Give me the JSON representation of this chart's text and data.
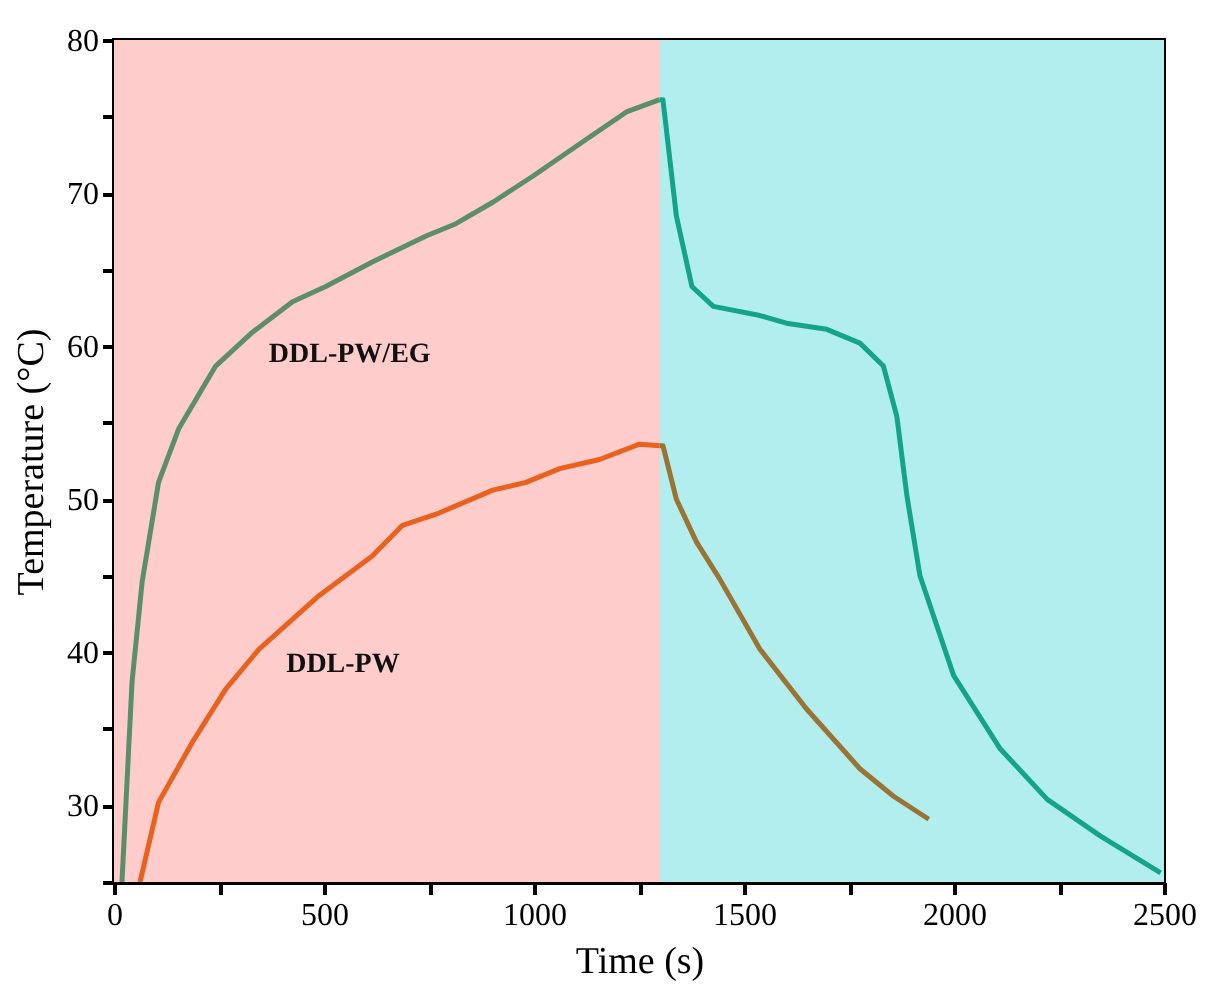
{
  "chart_data": {
    "type": "line",
    "xlabel": "Time (s)",
    "ylabel": "Temperature (°C)",
    "xlim": [
      0,
      2500
    ],
    "ylim": [
      25,
      80
    ],
    "xticks": [
      0,
      {
        "value": 250,
        "label": null
      },
      500,
      {
        "value": 750,
        "label": null
      },
      1000,
      {
        "value": 1250,
        "label": null
      },
      1500,
      {
        "value": 1750,
        "label": null
      },
      2000,
      {
        "value": 2250,
        "label": null
      },
      2500
    ],
    "yticks": [
      {
        "value": 25,
        "label": null
      },
      30,
      {
        "value": 35,
        "label": null
      },
      40,
      {
        "value": 45,
        "label": null
      },
      50,
      {
        "value": 55,
        "label": null
      },
      60,
      {
        "value": 65,
        "label": null
      },
      70,
      {
        "value": 75,
        "label": null
      },
      80
    ],
    "grid": false,
    "bands": [
      {
        "axis": "x",
        "from": 0,
        "to": 1300,
        "color": "#ffcccc"
      },
      {
        "axis": "x",
        "from": 1300,
        "to": 2500,
        "color": "#b3eeee"
      }
    ],
    "series": [
      {
        "name": "DDL-PW/EG",
        "color": "#5b8f6b",
        "x": [
          19,
          43,
          67,
          106,
          154,
          242,
          329,
          425,
          504,
          615,
          743,
          814,
          902,
          997,
          1124,
          1220,
          1299
        ],
        "values": [
          25,
          38.1,
          44.6,
          51.1,
          54.6,
          58.7,
          60.9,
          62.9,
          63.9,
          65.5,
          67.2,
          68.0,
          69.4,
          71.1,
          73.5,
          75.3,
          76.1
        ]
      },
      {
        "color": "#13a48a",
        "x": [
          1299,
          1307,
          1339,
          1376,
          1427,
          1538,
          1601,
          1697,
          1776,
          1832,
          1864,
          1888,
          1919,
          1999,
          2110,
          2222,
          2349,
          2492
        ],
        "values": [
          76.1,
          76.1,
          68.5,
          63.9,
          62.6,
          62.0,
          61.5,
          61.1,
          60.2,
          58.7,
          55.4,
          50.2,
          45.0,
          38.5,
          33.7,
          30.4,
          28.0,
          25.6
        ]
      },
      {
        "name": "DDL-PW",
        "color": "#e8621e",
        "x": [
          62,
          106,
          186,
          266,
          345,
          488,
          615,
          687,
          774,
          902,
          981,
          1061,
          1156,
          1251,
          1299
        ],
        "values": [
          25,
          30.2,
          34.1,
          37.6,
          40.2,
          43.7,
          46.3,
          48.3,
          49.1,
          50.6,
          51.1,
          52.0,
          52.6,
          53.6,
          53.5
        ]
      },
      {
        "color": "#9a7434",
        "x": [
          1299,
          1307,
          1339,
          1387,
          1442,
          1538,
          1649,
          1776,
          1856,
          1940
        ],
        "values": [
          53.5,
          53.5,
          50.0,
          47.2,
          44.8,
          40.2,
          36.3,
          32.4,
          30.6,
          29.1
        ]
      }
    ]
  }
}
